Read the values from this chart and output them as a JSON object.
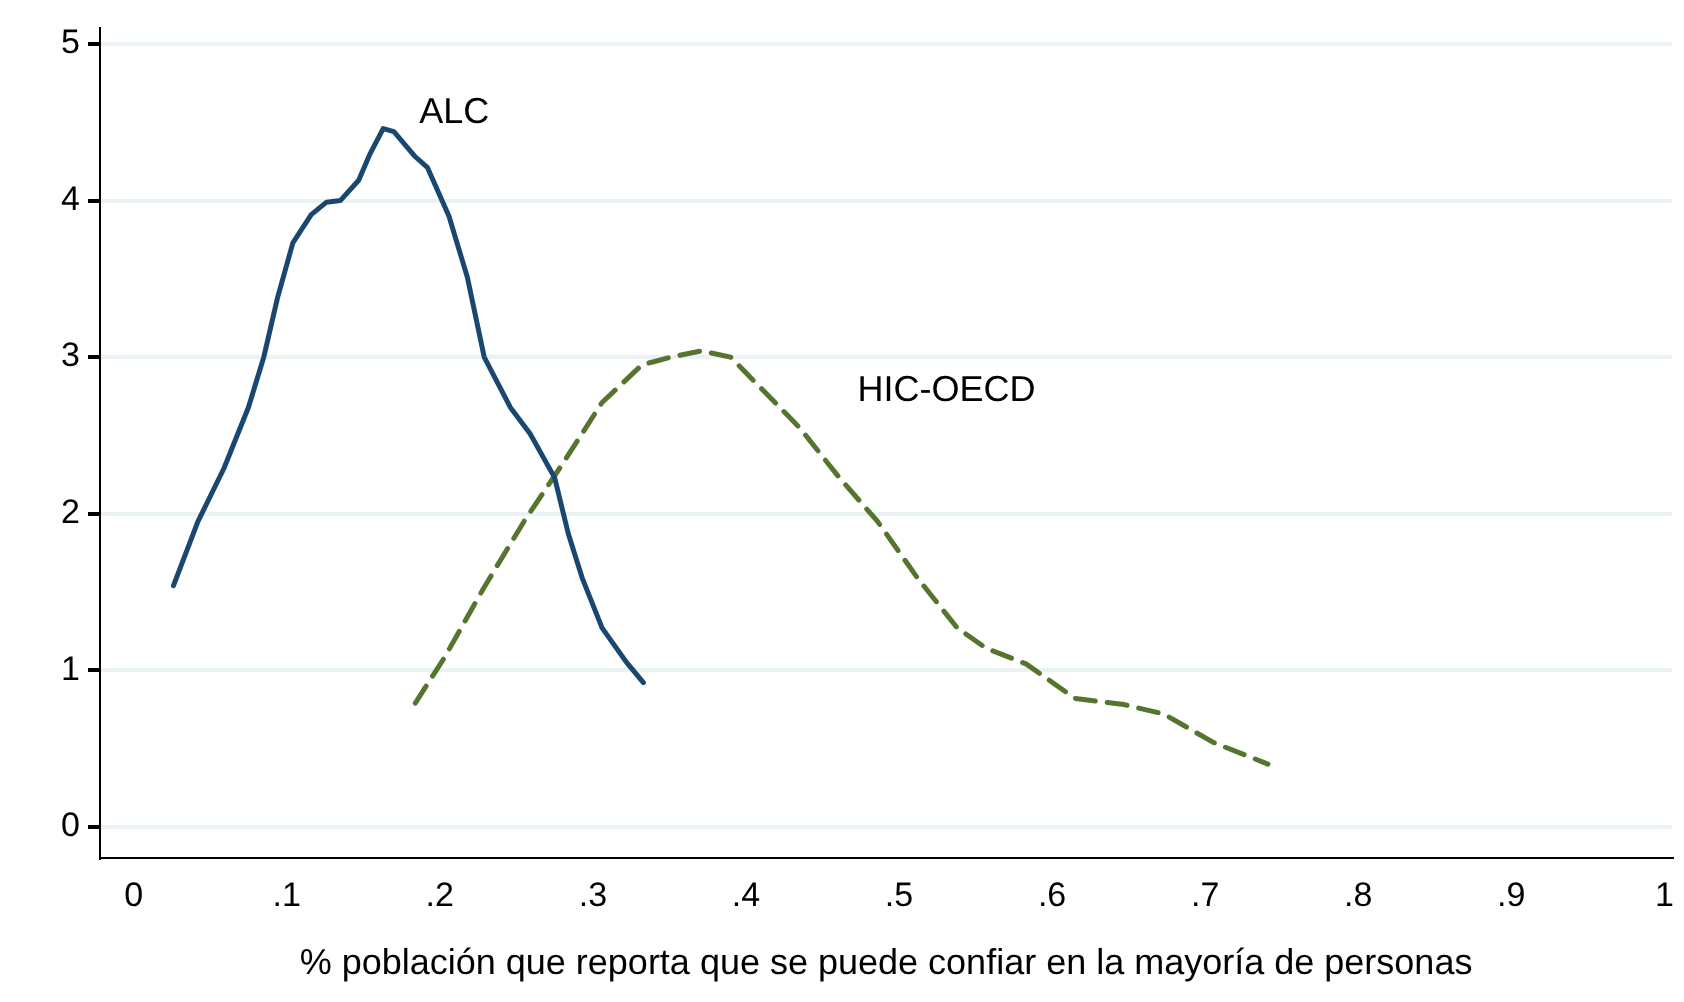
{
  "chart_data": {
    "type": "line",
    "xlabel": "% población que reporta que se puede confiar en la mayoría de personas",
    "xlim": [
      -0.022,
      1.005
    ],
    "ylim": [
      -0.2,
      5.1
    ],
    "xticks": [
      0,
      {
        "value": 0.1,
        "label": ".1"
      },
      {
        "value": 0.2,
        "label": ".2"
      },
      {
        "value": 0.3,
        "label": ".3"
      },
      {
        "value": 0.4,
        "label": ".4"
      },
      {
        "value": 0.5,
        "label": ".5"
      },
      {
        "value": 0.6,
        "label": ".6"
      },
      {
        "value": 0.7,
        "label": ".7"
      },
      {
        "value": 0.8,
        "label": ".8"
      },
      {
        "value": 0.9,
        "label": ".9"
      },
      1
    ],
    "yticks": [
      0,
      1,
      2,
      3,
      4,
      5
    ],
    "grid": "y",
    "legend": false,
    "marker": "none",
    "series": [
      {
        "name": "ALC",
        "color": "#1a476f",
        "line_style": "solid",
        "x": [
          0.026,
          0.042,
          0.059,
          0.075,
          0.085,
          0.094,
          0.104,
          0.116,
          0.126,
          0.135,
          0.147,
          0.154,
          0.163,
          0.17,
          0.184,
          0.192,
          0.206,
          0.218,
          0.229,
          0.246,
          0.259,
          0.275,
          0.284,
          0.293,
          0.306,
          0.322,
          0.333
        ],
        "values": [
          1.54,
          1.95,
          2.29,
          2.68,
          3.0,
          3.38,
          3.73,
          3.91,
          3.99,
          4.0,
          4.13,
          4.29,
          4.46,
          4.44,
          4.28,
          4.21,
          3.9,
          3.51,
          3.0,
          2.68,
          2.51,
          2.23,
          1.87,
          1.59,
          1.27,
          1.05,
          0.92
        ]
      },
      {
        "name": "HIC-OECD",
        "color": "#55752f",
        "line_style": "dashed",
        "x": [
          0.184,
          0.203,
          0.229,
          0.255,
          0.281,
          0.306,
          0.332,
          0.351,
          0.371,
          0.39,
          0.409,
          0.435,
          0.461,
          0.486,
          0.512,
          0.538,
          0.557,
          0.583,
          0.615,
          0.647,
          0.673,
          0.705,
          0.741
        ],
        "values": [
          0.79,
          1.08,
          1.53,
          1.95,
          2.33,
          2.71,
          2.95,
          3.0,
          3.04,
          3.0,
          2.81,
          2.55,
          2.23,
          1.95,
          1.59,
          1.27,
          1.14,
          1.04,
          0.82,
          0.78,
          0.72,
          0.54,
          0.4
        ]
      }
    ]
  }
}
